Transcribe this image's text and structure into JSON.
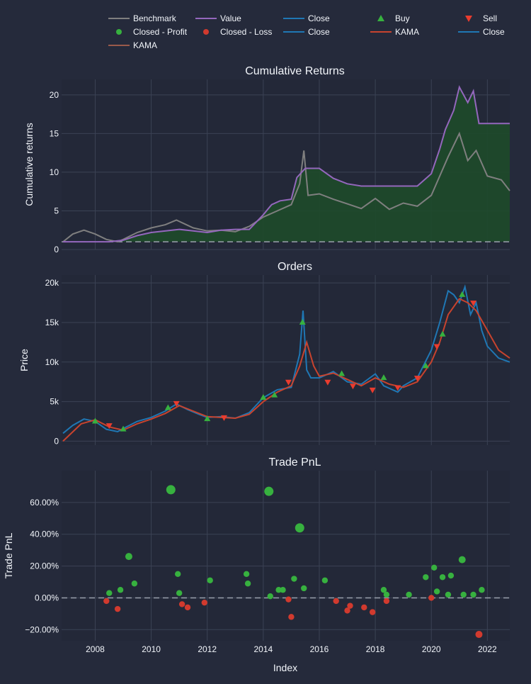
{
  "colors": {
    "background": "#252a3b",
    "plot_bg": "#232838",
    "grid": "#3b4254",
    "text": "#f2f5fa",
    "benchmark": "#7f7f7f",
    "value": "#9467bd",
    "fill": "#1e4a2a",
    "close": "#1f77b4",
    "kama": "#c8432e",
    "buy": "#37b13f",
    "sell": "#ea3c2e",
    "profit": "#37b13f",
    "loss": "#d13a2e",
    "zero_line": "#9aa0ac"
  },
  "legend": {
    "placement": "top",
    "items": [
      {
        "label": "Benchmark",
        "symbol": "line",
        "color": "#7f7f7f"
      },
      {
        "label": "Value",
        "symbol": "line",
        "color": "#9467bd"
      },
      {
        "label": "Close",
        "symbol": "line",
        "color": "#1f77b4"
      },
      {
        "label": "Buy",
        "symbol": "triangle-up",
        "color": "#37b13f"
      },
      {
        "label": "Sell",
        "symbol": "triangle-down",
        "color": "#ea3c2e"
      },
      {
        "label": "Closed - Profit",
        "symbol": "dot",
        "color": "#37b13f"
      },
      {
        "label": "Closed - Loss",
        "symbol": "dot",
        "color": "#d13a2e"
      },
      {
        "label": "Close",
        "symbol": "line",
        "color": "#1f77b4"
      },
      {
        "label": "KAMA",
        "symbol": "line",
        "color": "#c8432e"
      },
      {
        "label": "Close",
        "symbol": "line",
        "color": "#1f77b4"
      },
      {
        "label": "KAMA",
        "symbol": "line",
        "color": "#9a5a4a"
      }
    ]
  },
  "x_axis": {
    "label": "Index",
    "ticks": [
      "2008",
      "2010",
      "2012",
      "2014",
      "2016",
      "2018",
      "2020",
      "2022"
    ],
    "range": [
      2006.8,
      2022.8
    ]
  },
  "chart_data": [
    {
      "type": "area",
      "title": "Cumulative Returns",
      "ylabel": "Cumulative returns",
      "ylim": [
        0,
        22
      ],
      "y_ticks": [
        {
          "v": 0,
          "t": "0"
        },
        {
          "v": 5,
          "t": "5"
        },
        {
          "v": 10,
          "t": "10"
        },
        {
          "v": 15,
          "t": "15"
        },
        {
          "v": 20,
          "t": "20"
        }
      ],
      "baseline": 1,
      "series": [
        {
          "name": "Benchmark",
          "x": [
            2006.85,
            2007.2,
            2007.6,
            2008.0,
            2008.4,
            2008.8,
            2009.0,
            2009.5,
            2010.0,
            2010.5,
            2010.9,
            2011.5,
            2012.0,
            2012.5,
            2013.0,
            2013.5,
            2014.0,
            2014.5,
            2015.0,
            2015.3,
            2015.45,
            2015.6,
            2016.0,
            2016.5,
            2017.0,
            2017.5,
            2018.0,
            2018.5,
            2019.0,
            2019.5,
            2020.0,
            2020.3,
            2020.6,
            2021.0,
            2021.3,
            2021.6,
            2022.0,
            2022.5,
            2022.8
          ],
          "values": [
            1.0,
            2.0,
            2.5,
            2.0,
            1.3,
            1.0,
            1.3,
            2.2,
            2.8,
            3.2,
            3.8,
            2.8,
            2.4,
            2.5,
            2.3,
            3.0,
            4.2,
            5.0,
            5.8,
            8.5,
            12.8,
            7.0,
            7.2,
            6.5,
            5.9,
            5.3,
            6.6,
            5.2,
            6.0,
            5.6,
            7.0,
            9.5,
            12.0,
            15.0,
            11.5,
            12.8,
            9.5,
            9.0,
            7.6
          ]
        },
        {
          "name": "Value",
          "x": [
            2006.85,
            2008.0,
            2008.5,
            2009.0,
            2009.5,
            2010.0,
            2011.0,
            2011.5,
            2012.0,
            2012.5,
            2013.0,
            2013.5,
            2014.0,
            2014.3,
            2014.6,
            2015.0,
            2015.2,
            2015.5,
            2016.0,
            2016.5,
            2017.0,
            2017.5,
            2018.0,
            2018.5,
            2019.0,
            2019.5,
            2020.0,
            2020.3,
            2020.5,
            2020.8,
            2021.0,
            2021.3,
            2021.5,
            2021.7,
            2022.0,
            2022.8
          ],
          "values": [
            1.0,
            1.0,
            1.0,
            1.2,
            1.8,
            2.2,
            2.6,
            2.4,
            2.2,
            2.5,
            2.6,
            2.6,
            4.5,
            5.8,
            6.3,
            6.5,
            9.3,
            10.5,
            10.5,
            9.2,
            8.5,
            8.2,
            8.2,
            8.2,
            8.2,
            8.2,
            9.8,
            13.0,
            15.5,
            18.0,
            21.0,
            19.0,
            20.5,
            16.3,
            16.3,
            16.3
          ]
        }
      ]
    },
    {
      "type": "line",
      "title": "Orders",
      "ylabel": "Price",
      "ylim": [
        -500,
        21000
      ],
      "y_ticks": [
        {
          "v": 0,
          "t": "0"
        },
        {
          "v": 5000,
          "t": "5k"
        },
        {
          "v": 10000,
          "t": "10k"
        },
        {
          "v": 15000,
          "t": "15k"
        },
        {
          "v": 20000,
          "t": "20k"
        }
      ],
      "series": [
        {
          "name": "Close",
          "x": [
            2006.85,
            2007.2,
            2007.6,
            2008.0,
            2008.4,
            2008.8,
            2009.0,
            2009.5,
            2010.0,
            2010.5,
            2010.9,
            2011.3,
            2011.7,
            2012.0,
            2012.5,
            2013.0,
            2013.5,
            2014.0,
            2014.5,
            2015.0,
            2015.3,
            2015.42,
            2015.55,
            2015.7,
            2016.0,
            2016.5,
            2017.0,
            2017.5,
            2018.0,
            2018.3,
            2018.8,
            2019.0,
            2019.5,
            2020.0,
            2020.3,
            2020.6,
            2020.8,
            2021.0,
            2021.2,
            2021.4,
            2021.6,
            2021.8,
            2022.0,
            2022.4,
            2022.8
          ],
          "values": [
            1000,
            2000,
            2800,
            2500,
            1500,
            1200,
            1600,
            2500,
            3000,
            3800,
            4700,
            4000,
            3400,
            3000,
            3100,
            2900,
            3600,
            5500,
            6500,
            6800,
            11000,
            16500,
            9000,
            8000,
            8000,
            8800,
            7500,
            7200,
            8500,
            7000,
            6200,
            7000,
            8000,
            11500,
            15000,
            19000,
            18500,
            17500,
            19500,
            16000,
            17500,
            14000,
            12000,
            10500,
            10000
          ]
        },
        {
          "name": "KAMA",
          "x": [
            2006.85,
            2007.5,
            2008.0,
            2008.5,
            2009.0,
            2009.5,
            2010.0,
            2010.5,
            2011.0,
            2011.5,
            2012.0,
            2012.5,
            2013.0,
            2013.5,
            2014.0,
            2014.5,
            2015.0,
            2015.3,
            2015.55,
            2015.8,
            2016.0,
            2016.5,
            2017.0,
            2017.5,
            2018.0,
            2018.5,
            2019.0,
            2019.5,
            2020.0,
            2020.3,
            2020.6,
            2021.0,
            2021.3,
            2021.6,
            2022.0,
            2022.4,
            2022.8
          ],
          "values": [
            0,
            2200,
            2700,
            1800,
            1400,
            2200,
            2800,
            3500,
            4500,
            3800,
            3100,
            3000,
            2900,
            3400,
            5000,
            6200,
            7000,
            9500,
            12500,
            9500,
            8200,
            8600,
            7800,
            7000,
            8000,
            7200,
            6800,
            7500,
            10000,
            12500,
            16000,
            18000,
            17500,
            16500,
            14000,
            11500,
            10500
          ]
        }
      ],
      "buy_points": {
        "x": [
          2008.0,
          2009.0,
          2010.6,
          2012.0,
          2014.0,
          2014.4,
          2015.4,
          2016.8,
          2018.3,
          2019.8,
          2020.4,
          2021.1
        ],
        "values": [
          2500,
          1500,
          4200,
          2800,
          5500,
          5800,
          15000,
          8500,
          8000,
          9500,
          13500,
          18500
        ]
      },
      "sell_points": {
        "x": [
          2008.5,
          2010.9,
          2012.6,
          2014.9,
          2016.3,
          2017.2,
          2017.9,
          2018.8,
          2019.5,
          2020.2,
          2021.5
        ],
        "values": [
          2000,
          4800,
          3000,
          7500,
          7500,
          7000,
          6500,
          6800,
          8000,
          12000,
          17500
        ]
      }
    },
    {
      "type": "scatter",
      "title": "Trade PnL",
      "ylabel": "Trade PnL",
      "ylim": [
        -0.27,
        0.8
      ],
      "y_ticks": [
        {
          "v": -0.2,
          "t": "−20.00%"
        },
        {
          "v": 0,
          "t": "0.00%"
        },
        {
          "v": 0.2,
          "t": "20.00%"
        },
        {
          "v": 0.4,
          "t": "40.00%"
        },
        {
          "v": 0.6,
          "t": "60.00%"
        }
      ],
      "baseline": 0,
      "profit": {
        "x": [
          2008.5,
          2008.9,
          2009.2,
          2009.4,
          2010.7,
          2010.95,
          2011.0,
          2012.1,
          2013.4,
          2013.45,
          2014.2,
          2014.25,
          2014.55,
          2014.7,
          2015.1,
          2015.3,
          2015.45,
          2016.2,
          2018.3,
          2018.4,
          2019.2,
          2019.8,
          2020.1,
          2020.2,
          2020.4,
          2020.6,
          2020.7,
          2021.1,
          2021.15,
          2021.5,
          2021.8
        ],
        "values": [
          0.03,
          0.05,
          0.26,
          0.09,
          0.68,
          0.15,
          0.03,
          0.11,
          0.15,
          0.09,
          0.67,
          0.01,
          0.05,
          0.05,
          0.12,
          0.44,
          0.06,
          0.11,
          0.05,
          0.02,
          0.02,
          0.13,
          0.19,
          0.04,
          0.13,
          0.02,
          0.14,
          0.24,
          0.02,
          0.02,
          0.05
        ]
      },
      "loss": {
        "x": [
          2008.4,
          2008.8,
          2011.1,
          2011.3,
          2011.9,
          2014.9,
          2015.0,
          2016.6,
          2017.0,
          2017.1,
          2017.6,
          2017.9,
          2018.4,
          2020.0,
          2021.7
        ],
        "values": [
          -0.02,
          -0.07,
          -0.04,
          -0.06,
          -0.03,
          -0.01,
          -0.12,
          -0.02,
          -0.08,
          -0.05,
          -0.06,
          -0.09,
          -0.02,
          0.0,
          -0.23
        ]
      },
      "big_x": [
        2010.7,
        2014.2,
        2015.3
      ]
    }
  ]
}
